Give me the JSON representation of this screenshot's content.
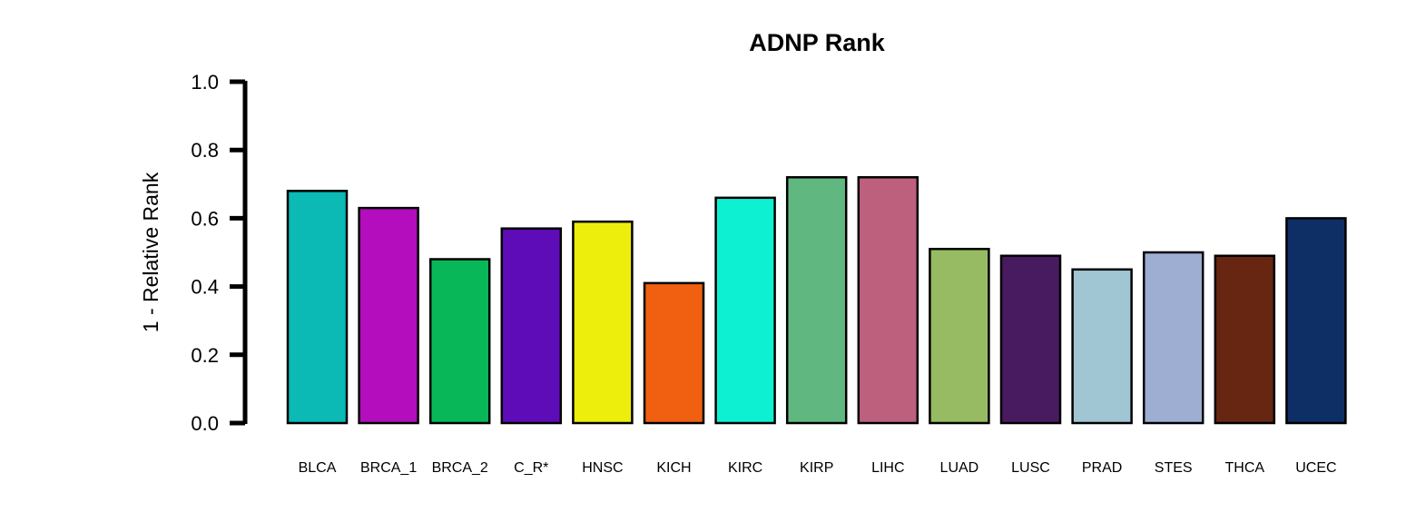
{
  "chart_data": {
    "type": "bar",
    "title": "ADNP Rank",
    "ylabel": "1 - Relative Rank",
    "xlabel": "",
    "ylim": [
      0,
      1
    ],
    "yticks": [
      "0.0",
      "0.2",
      "0.4",
      "0.6",
      "0.8",
      "1.0"
    ],
    "grid": false,
    "categories": [
      "BLCA",
      "BRCA_1",
      "BRCA_2",
      "C_R*",
      "HNSC",
      "KICH",
      "KIRC",
      "KIRP",
      "LIHC",
      "LUAD",
      "LUSC",
      "PRAD",
      "STES",
      "THCA",
      "UCEC"
    ],
    "values": [
      0.68,
      0.63,
      0.48,
      0.57,
      0.59,
      0.41,
      0.66,
      0.72,
      0.72,
      0.51,
      0.49,
      0.45,
      0.5,
      0.49,
      0.6
    ],
    "colors": [
      "#0bbab5",
      "#b30dbd",
      "#08b858",
      "#5e0bb8",
      "#eeee0d",
      "#f06010",
      "#0ef0d2",
      "#60b880",
      "#bc607e",
      "#96bb62",
      "#481b60",
      "#a0c5d3",
      "#9eaed3",
      "#662612",
      "#0e2e66"
    ]
  }
}
